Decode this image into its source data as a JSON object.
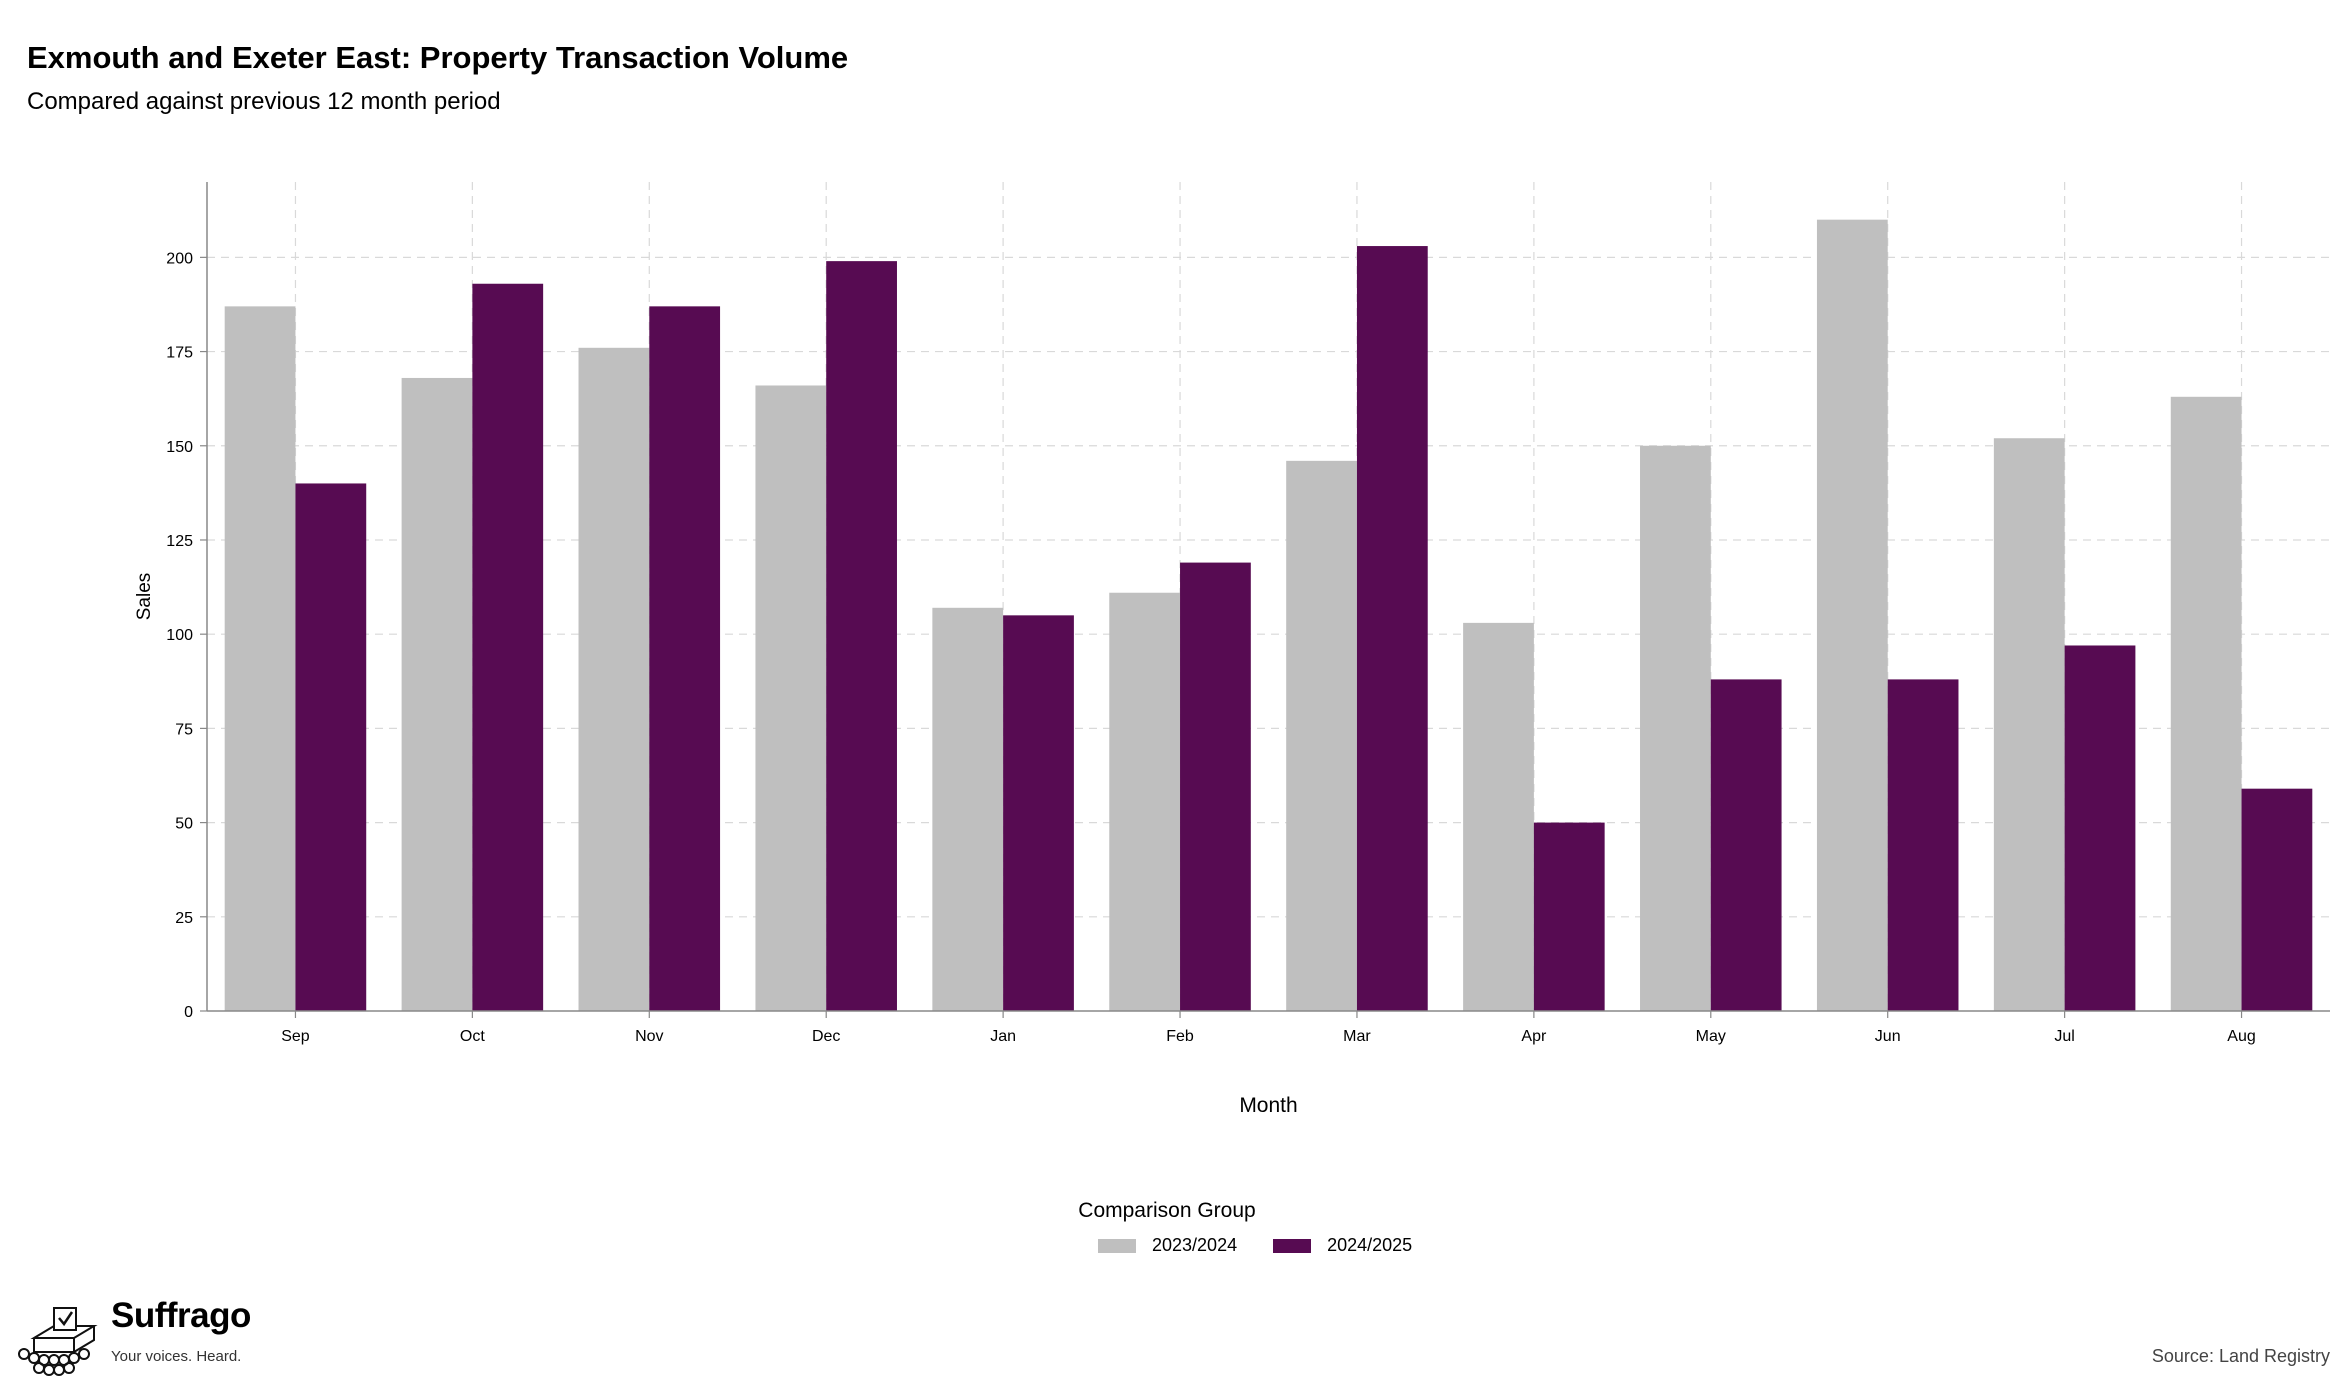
{
  "header": {
    "title": "Exmouth and Exeter East: Property Transaction Volume",
    "subtitle": "Compared against previous 12 month period"
  },
  "chart_data": {
    "type": "bar",
    "title": "Exmouth and Exeter East: Property Transaction Volume",
    "subtitle": "Compared against previous 12 month period",
    "xlabel": "Month",
    "ylabel": "Sales",
    "categories": [
      "Sep",
      "Oct",
      "Nov",
      "Dec",
      "Jan",
      "Feb",
      "Mar",
      "Apr",
      "May",
      "Jun",
      "Jul",
      "Aug"
    ],
    "series": [
      {
        "name": "2023/2024",
        "color": "#bfbfbf",
        "values": [
          187,
          168,
          176,
          166,
          107,
          111,
          146,
          103,
          150,
          210,
          152,
          163
        ]
      },
      {
        "name": "2024/2025",
        "color": "#570b52",
        "values": [
          140,
          193,
          187,
          199,
          105,
          119,
          203,
          50,
          88,
          88,
          97,
          59
        ]
      }
    ],
    "ylim": [
      0,
      220
    ],
    "yticks": [
      0,
      25,
      50,
      75,
      100,
      125,
      150,
      175,
      200
    ],
    "grid": true,
    "legend": {
      "title": "Comparison Group",
      "position": "bottom"
    }
  },
  "legend": {
    "title": "Comparison Group",
    "items": [
      "2023/2024",
      "2024/2025"
    ],
    "colors": [
      "#bfbfbf",
      "#570b52"
    ]
  },
  "footer": {
    "brand": "Suffrago",
    "tagline": "Your voices. Heard.",
    "source": "Source: Land Registry",
    "logo_icon": "ballot-box-icon"
  }
}
